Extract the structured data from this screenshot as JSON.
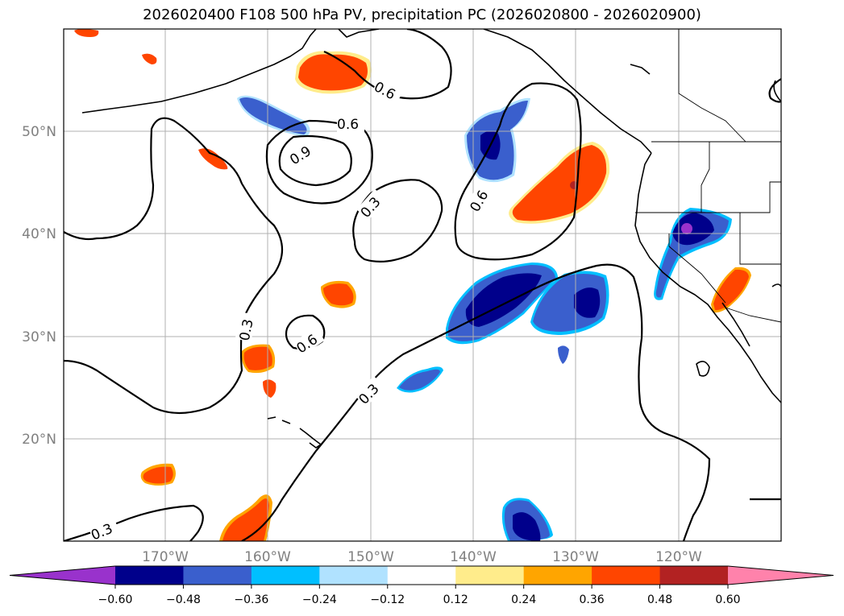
{
  "title": "2026020400 F108 500 hPa PV, precipitation PC (2026020800 - 2026020900)",
  "map": {
    "lat_labels": [
      "50°N",
      "40°N",
      "30°N",
      "20°N"
    ],
    "lon_labels": [
      "170°W",
      "160°W",
      "150°W",
      "140°W",
      "130°W",
      "120°W"
    ],
    "contour_labels": {
      "c06_north": "0.6",
      "c06_mid": "0.6",
      "c09": "0.9",
      "c03_center": "0.3",
      "c06_east": "0.6",
      "c03_west": "0.3",
      "c06_south": "0.6",
      "c03_south": "0.3",
      "c03_sw": "0.3"
    }
  },
  "colorbar": {
    "ticks": [
      "−0.60",
      "−0.48",
      "−0.36",
      "−0.24",
      "−0.12",
      "0.12",
      "0.24",
      "0.36",
      "0.48",
      "0.60"
    ],
    "colors": [
      "#9932cc",
      "#00008b",
      "#3a5fcd",
      "#00bfff",
      "#b0e2ff",
      "#ffffff",
      "#ffec8b",
      "#ffa500",
      "#ff4500",
      "#b22222",
      "#ff82ab"
    ]
  }
}
